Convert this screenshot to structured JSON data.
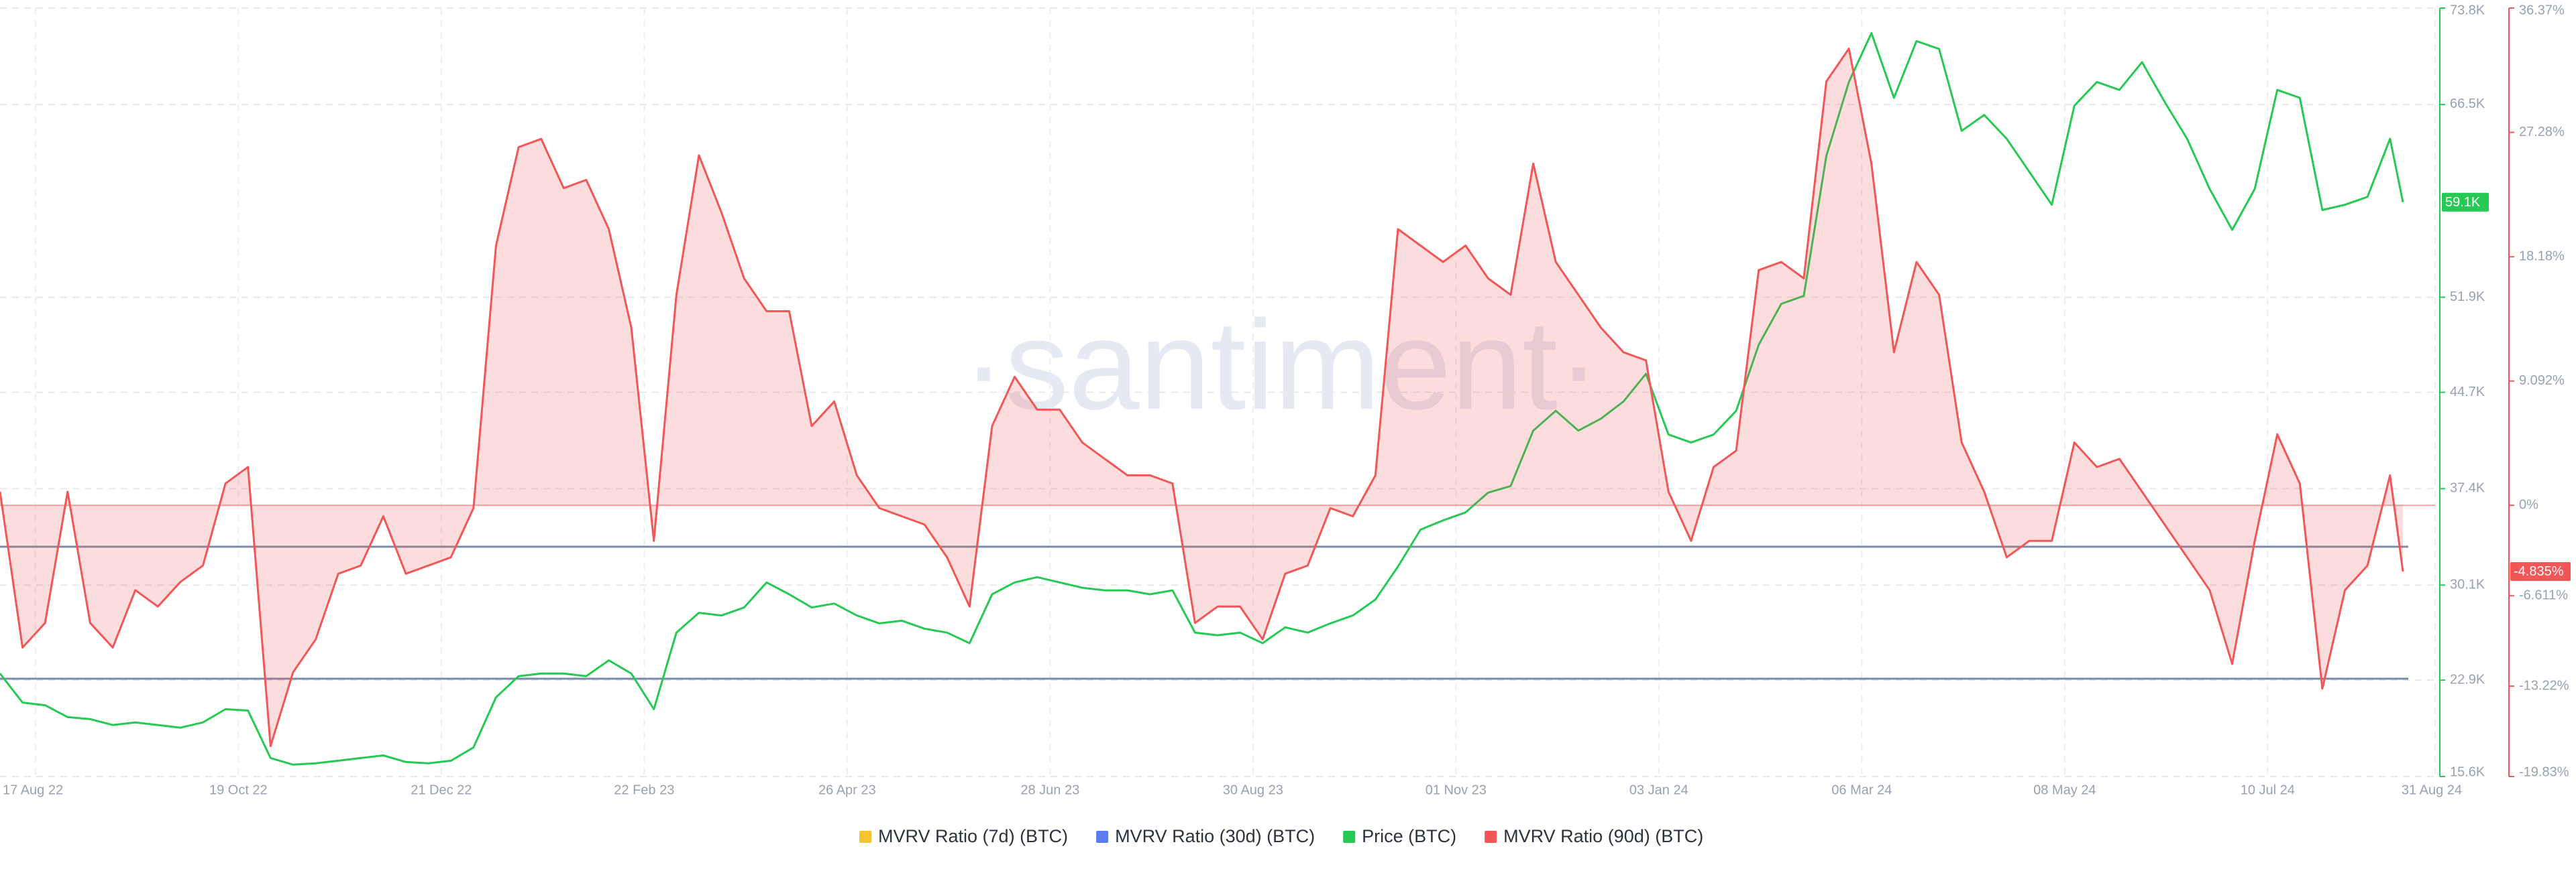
{
  "chart_data": {
    "type": "line",
    "watermark": "·santiment·",
    "x": [
      "2022-08-06",
      "2022-08-13",
      "2022-08-20",
      "2022-08-27",
      "2022-09-03",
      "2022-09-10",
      "2022-09-17",
      "2022-09-24",
      "2022-10-01",
      "2022-10-08",
      "2022-10-15",
      "2022-10-22",
      "2022-10-29",
      "2022-11-05",
      "2022-11-12",
      "2022-11-19",
      "2022-11-26",
      "2022-12-03",
      "2022-12-10",
      "2022-12-17",
      "2022-12-24",
      "2022-12-31",
      "2023-01-07",
      "2023-01-14",
      "2023-01-21",
      "2023-01-28",
      "2023-02-04",
      "2023-02-11",
      "2023-02-18",
      "2023-02-25",
      "2023-03-04",
      "2023-03-11",
      "2023-03-18",
      "2023-03-25",
      "2023-04-01",
      "2023-04-08",
      "2023-04-15",
      "2023-04-22",
      "2023-04-29",
      "2023-05-06",
      "2023-05-13",
      "2023-05-20",
      "2023-05-27",
      "2023-06-03",
      "2023-06-10",
      "2023-06-17",
      "2023-06-24",
      "2023-07-01",
      "2023-07-08",
      "2023-07-15",
      "2023-07-22",
      "2023-07-29",
      "2023-08-05",
      "2023-08-12",
      "2023-08-19",
      "2023-08-26",
      "2023-09-02",
      "2023-09-09",
      "2023-09-16",
      "2023-09-23",
      "2023-09-30",
      "2023-10-07",
      "2023-10-14",
      "2023-10-21",
      "2023-10-28",
      "2023-11-04",
      "2023-11-11",
      "2023-11-18",
      "2023-11-25",
      "2023-12-02",
      "2023-12-09",
      "2023-12-16",
      "2023-12-23",
      "2023-12-30",
      "2024-01-06",
      "2024-01-13",
      "2024-01-20",
      "2024-01-27",
      "2024-02-03",
      "2024-02-10",
      "2024-02-17",
      "2024-02-24",
      "2024-03-02",
      "2024-03-09",
      "2024-03-16",
      "2024-03-23",
      "2024-03-30",
      "2024-04-06",
      "2024-04-13",
      "2024-04-20",
      "2024-04-27",
      "2024-05-04",
      "2024-05-11",
      "2024-05-18",
      "2024-05-25",
      "2024-06-01",
      "2024-06-08",
      "2024-06-15",
      "2024-06-22",
      "2024-06-29",
      "2024-07-06",
      "2024-07-13",
      "2024-07-20",
      "2024-07-27",
      "2024-08-03",
      "2024-08-10",
      "2024-08-17",
      "2024-08-21"
    ],
    "xlim": [
      "2022-08-06",
      "2024-08-31"
    ],
    "xticks": [
      {
        "value": "2022-08-17",
        "label": "17 Aug 22"
      },
      {
        "value": "2022-10-19",
        "label": "19 Oct 22"
      },
      {
        "value": "2022-12-21",
        "label": "21 Dec 22"
      },
      {
        "value": "2023-02-22",
        "label": "22 Feb 23"
      },
      {
        "value": "2023-04-26",
        "label": "26 Apr 23"
      },
      {
        "value": "2023-06-28",
        "label": "28 Jun 23"
      },
      {
        "value": "2023-08-30",
        "label": "30 Aug 23"
      },
      {
        "value": "2023-11-01",
        "label": "01 Nov 23"
      },
      {
        "value": "2024-01-03",
        "label": "03 Jan 24"
      },
      {
        "value": "2024-03-06",
        "label": "06 Mar 24"
      },
      {
        "value": "2024-05-08",
        "label": "08 May 24"
      },
      {
        "value": "2024-07-10",
        "label": "10 Jul 24"
      },
      {
        "value": "2024-08-31",
        "label": "31 Aug 24"
      }
    ],
    "ylim": [
      15600,
      73800
    ],
    "yticks": [
      {
        "value": 15600,
        "label": "15.6K"
      },
      {
        "value": 22900,
        "label": "22.9K"
      },
      {
        "value": 30100,
        "label": "30.1K"
      },
      {
        "value": 37400,
        "label": "37.4K"
      },
      {
        "value": 44700,
        "label": "44.7K"
      },
      {
        "value": 51900,
        "label": "51.9K"
      },
      {
        "value": 66500,
        "label": "66.5K"
      },
      {
        "value": 73800,
        "label": "73.8K"
      }
    ],
    "y2lim": [
      -19.83,
      36.37
    ],
    "y2ticks": [
      {
        "value": -19.83,
        "label": "-19.83%"
      },
      {
        "value": -13.22,
        "label": "-13.22%"
      },
      {
        "value": -6.611,
        "label": "-6.611%"
      },
      {
        "value": 0,
        "label": "0%"
      },
      {
        "value": 9.092,
        "label": "9.092%"
      },
      {
        "value": 18.18,
        "label": "18.18%"
      },
      {
        "value": 27.28,
        "label": "27.28%"
      },
      {
        "value": 36.37,
        "label": "36.37%"
      }
    ],
    "grid": true,
    "series": [
      {
        "name": "MVRV Ratio (7d) (BTC)",
        "color": "#f4c430"
      },
      {
        "name": "MVRV Ratio (30d) (BTC)",
        "color": "#5b7cf0"
      },
      {
        "name": "Price (BTC)",
        "color": "#26c953",
        "last_label": "59.1K",
        "values": [
          23400,
          21200,
          21000,
          20100,
          19950,
          19500,
          19700,
          19500,
          19300,
          19700,
          20700,
          20600,
          17000,
          16500,
          16600,
          16800,
          17000,
          17200,
          16700,
          16600,
          16800,
          17800,
          21600,
          23200,
          23400,
          23400,
          23200,
          24400,
          23400,
          20700,
          26500,
          28000,
          27800,
          28400,
          30300,
          29400,
          28400,
          28700,
          27800,
          27200,
          27400,
          26800,
          26500,
          25700,
          29400,
          30300,
          30700,
          30300,
          29900,
          29700,
          29700,
          29400,
          29700,
          26500,
          26300,
          26500,
          25700,
          26900,
          26500,
          27200,
          27800,
          29000,
          31500,
          34300,
          35000,
          35600,
          37100,
          37600,
          41800,
          43300,
          41800,
          42700,
          44000,
          46100,
          41500,
          40900,
          41500,
          43300,
          48300,
          51400,
          52000,
          62600,
          68200,
          71900,
          67000,
          71300,
          70700,
          64500,
          65700,
          63900,
          61400,
          58900,
          66400,
          68200,
          67600,
          69700,
          66700,
          63900,
          60100,
          57000,
          60100,
          67600,
          67000,
          58500,
          58900,
          59500,
          63900,
          59100
        ]
      },
      {
        "name": "MVRV Ratio (90d) (BTC)",
        "color": "#f25656",
        "axis": "y2",
        "last_label": "-4.835%",
        "values": [
          1.0,
          -10.4,
          -8.6,
          1.0,
          -8.6,
          -10.4,
          -6.2,
          -7.4,
          -5.6,
          -4.4,
          1.6,
          2.8,
          -17.6,
          -12.2,
          -9.8,
          -5.0,
          -4.4,
          -0.8,
          -5.0,
          -4.4,
          -3.8,
          -0.2,
          19.0,
          26.2,
          26.8,
          23.2,
          23.8,
          20.2,
          13.0,
          -2.6,
          15.4,
          25.6,
          21.4,
          16.6,
          14.2,
          14.2,
          5.8,
          7.6,
          2.2,
          -0.2,
          -0.8,
          -1.4,
          -3.8,
          -7.4,
          5.8,
          9.4,
          7.0,
          7.0,
          4.6,
          3.4,
          2.2,
          2.2,
          1.6,
          -8.6,
          -7.4,
          -7.4,
          -9.8,
          -5.0,
          -4.4,
          -0.2,
          -0.8,
          2.2,
          20.2,
          19.0,
          17.8,
          19.0,
          16.6,
          15.4,
          25.0,
          17.8,
          15.4,
          13.0,
          11.2,
          10.6,
          1.0,
          -2.6,
          2.8,
          4.0,
          17.2,
          17.8,
          16.6,
          31.0,
          33.4,
          25.0,
          11.2,
          17.8,
          15.4,
          4.6,
          1.0,
          -3.8,
          -2.6,
          -2.6,
          4.6,
          2.8,
          3.4,
          1.0,
          -1.4,
          -3.8,
          -6.2,
          -11.6,
          -2.6,
          5.2,
          1.6,
          -13.4,
          -6.2,
          -4.4,
          2.2,
          -4.835
        ]
      }
    ]
  }
}
